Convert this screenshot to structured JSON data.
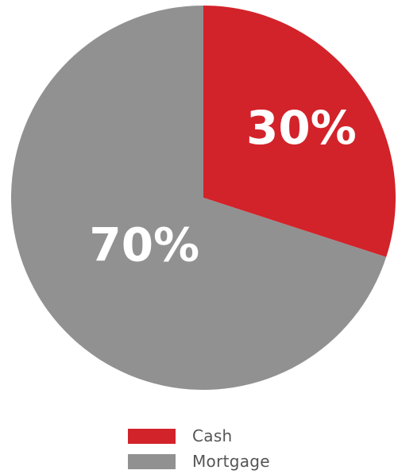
{
  "chart_data": {
    "type": "pie",
    "slices": [
      {
        "name": "Cash",
        "value": 30,
        "label": "30%",
        "color": "#d2232a"
      },
      {
        "name": "Mortgage",
        "value": 70,
        "label": "70%",
        "color": "#919191"
      }
    ],
    "start_angle_deg": 0,
    "direction": "clockwise",
    "legend_position": "bottom"
  },
  "legend": {
    "items": [
      {
        "label": "Cash",
        "color": "#d2232a"
      },
      {
        "label": "Mortgage",
        "color": "#919191"
      }
    ]
  }
}
